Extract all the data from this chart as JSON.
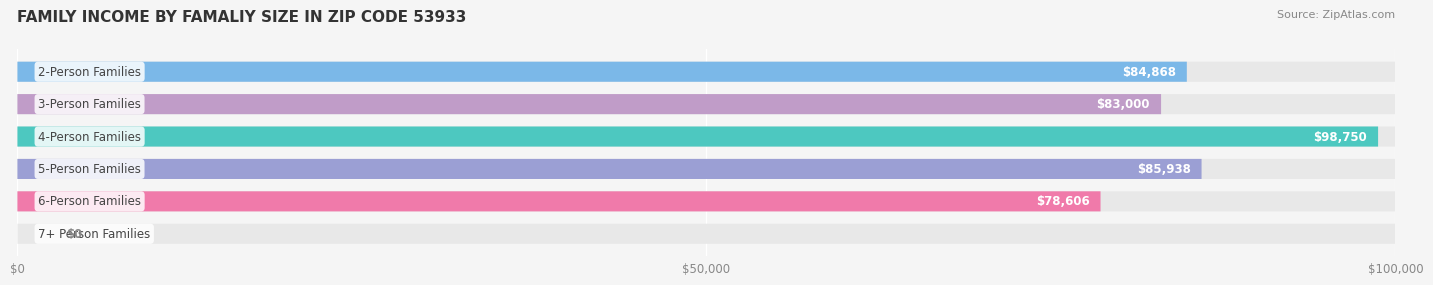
{
  "title": "FAMILY INCOME BY FAMALIY SIZE IN ZIP CODE 53933",
  "source": "Source: ZipAtlas.com",
  "categories": [
    "2-Person Families",
    "3-Person Families",
    "4-Person Families",
    "5-Person Families",
    "6-Person Families",
    "7+ Person Families"
  ],
  "values": [
    84868,
    83000,
    98750,
    85938,
    78606,
    0
  ],
  "labels": [
    "$84,868",
    "$83,000",
    "$98,750",
    "$85,938",
    "$78,606",
    "$0"
  ],
  "bar_colors": [
    "#7BB8E8",
    "#C09CC8",
    "#4DC8C0",
    "#9B9FD4",
    "#F07AAA",
    "#F5CFA0"
  ],
  "bar_bg_color": "#E8E8E8",
  "xlim": [
    0,
    100000
  ],
  "xticks": [
    0,
    50000,
    100000
  ],
  "xtick_labels": [
    "$0",
    "$50,000",
    "$100,000"
  ],
  "bar_height": 0.62,
  "background_color": "#F5F5F5",
  "title_fontsize": 11,
  "label_fontsize": 8.5,
  "value_fontsize": 8.5,
  "source_fontsize": 8
}
